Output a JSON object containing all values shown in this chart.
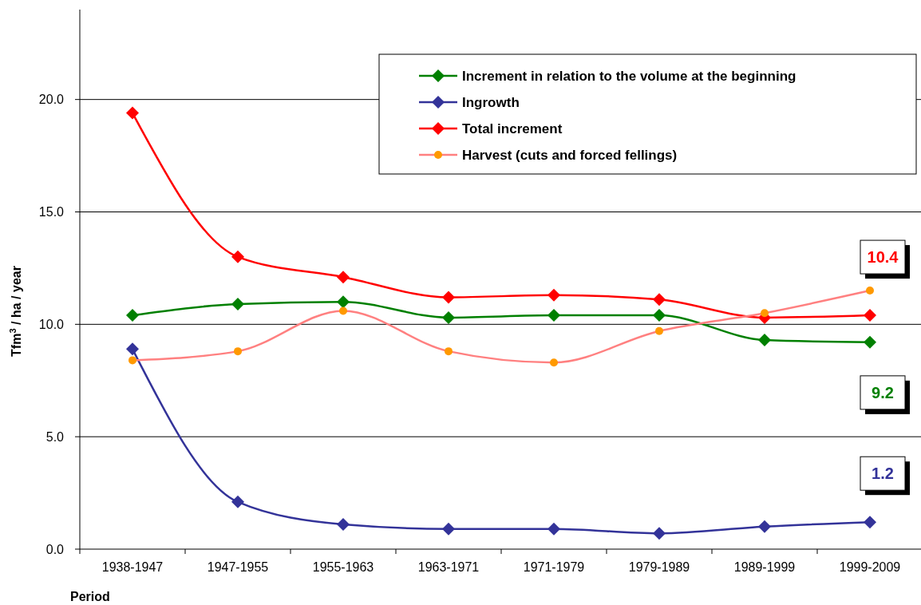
{
  "chart_data": {
    "type": "line",
    "xlabel": "Period",
    "ylabel": "Tfm$^{3}$ / ha / year",
    "categories": [
      "1938-1947",
      "1947-1955",
      "1955-1963",
      "1963-1971",
      "1971-1979",
      "1979-1989",
      "1989-1999",
      "1999-2009"
    ],
    "series": [
      {
        "name": "Increment in relation to the volume at the beginning",
        "color": "#008000",
        "marker": "diamond",
        "values": [
          10.4,
          10.9,
          11.0,
          10.3,
          10.4,
          10.4,
          9.3,
          9.2
        ]
      },
      {
        "name": "Ingrowth",
        "color": "#333399",
        "marker": "diamond",
        "values": [
          8.9,
          2.1,
          1.1,
          0.9,
          0.9,
          0.7,
          1.0,
          1.2
        ]
      },
      {
        "name": "Total increment",
        "color": "#ff0000",
        "marker": "diamond",
        "values": [
          19.4,
          13.0,
          12.1,
          11.2,
          11.3,
          11.1,
          10.3,
          10.4
        ]
      },
      {
        "name": "Harvest (cuts and forced fellings)",
        "color": "#ff8080",
        "colors": [
          "#ff9900",
          "#ff9900",
          "#ff9900",
          "#ff9900",
          "#ff9900",
          "#ff9900",
          "#ff9900",
          "#ff9900"
        ],
        "marker": "circle",
        "values": [
          8.4,
          8.8,
          10.6,
          8.8,
          8.3,
          9.7,
          10.5,
          11.5
        ]
      }
    ],
    "ylim": [
      0,
      24
    ],
    "yticks": [
      {
        "value": 0,
        "label": "0.0"
      },
      {
        "value": 5,
        "label": "5.0"
      },
      {
        "value": 10,
        "label": "10.0"
      },
      {
        "value": 15,
        "label": "15.0"
      },
      {
        "value": 20,
        "label": "20.0"
      }
    ],
    "grid": "y",
    "legend": "top right",
    "annotations": [
      "10.4",
      "9.2",
      "1.2"
    ]
  }
}
